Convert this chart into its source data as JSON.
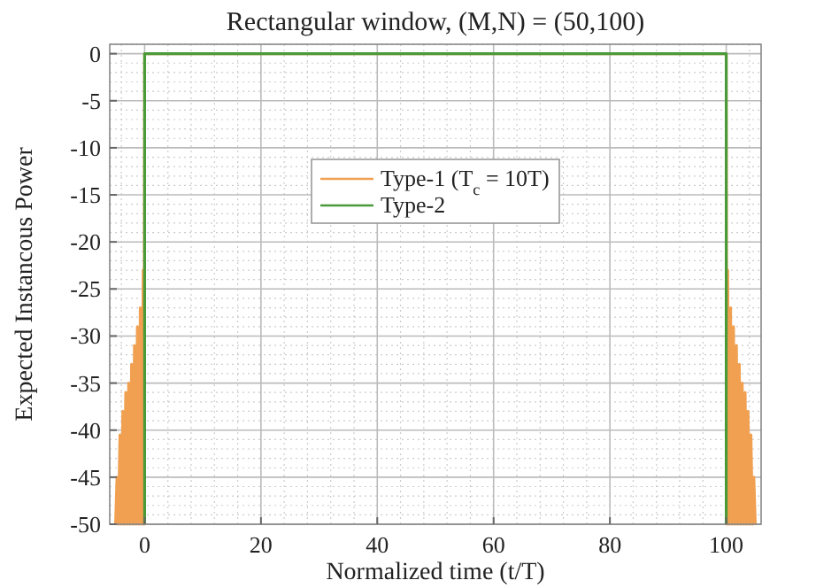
{
  "chart_data": {
    "type": "line",
    "title": "Rectangular window, (M,N) = (50,100)",
    "xlabel": "Normalized time (t/T)",
    "ylabel": "Expected Instancous Power",
    "xlim": [
      -6,
      106
    ],
    "ylim": [
      -50,
      1
    ],
    "xticks": [
      0,
      20,
      40,
      60,
      80,
      100
    ],
    "yticks": [
      -50,
      -45,
      -40,
      -35,
      -30,
      -25,
      -20,
      -15,
      -10,
      -5,
      0
    ],
    "grid": true,
    "legend": "top",
    "line_style": "solid",
    "series": [
      {
        "name": "Type-1 (T$_{c}$ = 10T)",
        "color": "#f0a050",
        "x": [
          -5,
          -4.75,
          -4.5,
          -4.25,
          -4,
          -3.75,
          -3.5,
          -3.25,
          -3,
          -2.75,
          -2.5,
          -2.25,
          -2,
          -1.75,
          -1.5,
          -1.25,
          -1,
          -0.75,
          -0.5,
          -0.25,
          -0.1,
          0,
          100,
          100.1,
          100.25,
          100.5,
          100.75,
          101,
          101.25,
          101.5,
          101.75,
          102,
          102.25,
          102.5,
          102.75,
          103,
          103.25,
          103.5,
          103.75,
          104,
          104.25,
          104.5,
          104.75,
          105
        ],
        "values": [
          -50,
          -45,
          -50,
          -40.5,
          -50,
          -38,
          -50,
          -36,
          -50,
          -35,
          -50,
          -33,
          -50,
          -31,
          -50,
          -29,
          -50,
          -27,
          -50,
          -23,
          -50,
          0,
          0,
          -50,
          -23,
          -50,
          -27,
          -50,
          -29,
          -50,
          -31,
          -50,
          -33,
          -50,
          -35,
          -50,
          -36,
          -50,
          -38,
          -50,
          -40.5,
          -50,
          -45,
          -50
        ]
      },
      {
        "name": "Type-2",
        "color": "#4a9a3a",
        "x": [
          0,
          0,
          100,
          100
        ],
        "values": [
          -50,
          0,
          0,
          -50
        ]
      }
    ]
  }
}
